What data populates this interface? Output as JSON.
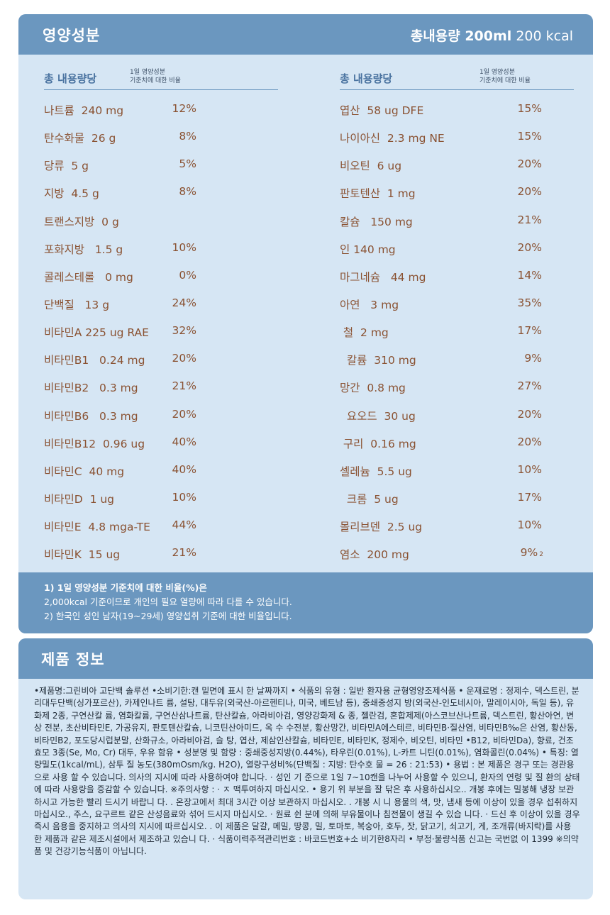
{
  "nutrition": {
    "title": "영양성분",
    "total_label": "총내용량",
    "total_amount": "200ml",
    "total_kcal": "200 kcal",
    "col_header": "총 내용량당",
    "col_subheader_line1": "1일 영양성분",
    "col_subheader_line2": "기준치에 대한 비율",
    "left": [
      {
        "name": "나트륨  240 mg",
        "pct": "12%"
      },
      {
        "name": "탄수화물  26 g",
        "pct": "8%"
      },
      {
        "name": "당류  5 g",
        "pct": "5%"
      },
      {
        "name": "지방  4.5 g",
        "pct": "8%"
      },
      {
        "name": "트랜스지방  0 g",
        "pct": ""
      },
      {
        "name": "포화지방   1.5 g",
        "pct": "10%"
      },
      {
        "name": "콜레스테롤   0 mg",
        "pct": "0%"
      },
      {
        "name": "단백질   13 g",
        "pct": "24%"
      },
      {
        "name": "비타민A 225 ug RAE",
        "pct": "32%"
      },
      {
        "name": "비타민B1   0.24 mg",
        "pct": "20%"
      },
      {
        "name": "비타민B2   0.3 mg",
        "pct": "21%"
      },
      {
        "name": "비타민B6   0.3 mg",
        "pct": "20%"
      },
      {
        "name": "비타민B12  0.96 ug",
        "pct": "40%"
      },
      {
        "name": "비타민C  40 mg",
        "pct": "40%"
      },
      {
        "name": "비타민D  1 ug",
        "pct": "10%"
      },
      {
        "name": "비타민E  4.8 mga-TE",
        "pct": "44%"
      },
      {
        "name": "비타민K  15 ug",
        "pct": "21%"
      }
    ],
    "right": [
      {
        "name": "엽산  58 ug DFE",
        "pct": "15%"
      },
      {
        "name": "나이아신  2.3 mg NE",
        "pct": "15%"
      },
      {
        "name": "비오틴  6 ug",
        "pct": "20%"
      },
      {
        "name": "판토텐산  1 mg",
        "pct": "20%"
      },
      {
        "name": "칼슘   150 mg",
        "pct": "21%"
      },
      {
        "name": "인 140 mg",
        "pct": "20%"
      },
      {
        "name": "마그네슘   44 mg",
        "pct": "14%"
      },
      {
        "name": "아연   3 mg",
        "pct": "35%"
      },
      {
        "name": " 철  2 mg",
        "pct": "17%"
      },
      {
        "name": "  칼륨  310 mg",
        "pct": "9%"
      },
      {
        "name": "망간  0.8 mg",
        "pct": "27%"
      },
      {
        "name": "  요오드  30 ug",
        "pct": "20%"
      },
      {
        "name": " 구리  0.16 mg",
        "pct": "20%"
      },
      {
        "name": "셀레늄  5.5 ug",
        "pct": "10%"
      },
      {
        "name": "  크롬  5 ug",
        "pct": "17%"
      },
      {
        "name": "몰리브덴  2.5 ug",
        "pct": "10%"
      },
      {
        "name": "염소  200 mg",
        "pct": "9%",
        "note": "2"
      }
    ],
    "footnote1_bold": "1) 1일 영양성분 기준치에 대한 비율(%)은",
    "footnote1_rest": "2,000kcal 기준이므로 개인의 필요 열량에 따라 다를 수 있습니다.",
    "footnote2": "2) 한국인 성인 남자(19~29세) 영양섭취 기준에 대한 비율입니다."
  },
  "product": {
    "title": "제품 정보",
    "text": "•제품명:그린비아 고단백 솔루션 •소비기한:캔 밑면에 표시 한 날짜까지 • 식품의 유형 : 일반 환자용 균형영양조제식품 • 운재료명 : 정제수, 덱스트린, 분리대두단백(싱가포르산), 카제인나트 륨, 설탕, 대두유(외국산-아르헨티나, 미국, 베트남 등), 중쇄중성지 방(외국산-인도네시아, 말레이시아, 독일 등), 유화제 2종, 구연산칼 륨, 염화칼륨, 구연산삼나트륨, 탄산칼슘, 아라비아검, 영양강화제 & 종, 젤란검, 혼합제제(아스코브산나트륨, 덱스트린, 황산아연, 변상 전분, 초산비타민E, 가공유지, 판토텐산칼슘, 니코틴산아미드, 옥 수 수전분, 황산망간, 비타민A에스테르, 비타민B·질산염, 비타민B‰은 산염, 황산동, 비타민B2, 포도당시럽분말, 산화규소, 아라비아검, 슬 탕, 엽산, 제삼인산칼슘, 비타민E, 비타민K, 정제수, 비오틴, 비타민 •B12, 비타민Da), 향료, 건조효모 3종(Se, Mo, Cr) 대두, 우유 함유 • 성분명 및 함량 : 중쇄중성지방(0.44%), 타우린(0.01%), L-카트 니틴(0.01%), 염화콜린(0.04%) • 특징: 열량밀도(1kcal/mL), 삼투 질 농도(380mOsm/kg. H2O), 열량구성비%(단백질 : 지방: 탄수호 물 = 26 : 21:53) • 용법 : 본 제품은 경구 또는 경관용으로 사용 할 수 있습니다. 의사의 지시에 따라 사용하여야 합니다. · 성인 기 준으로 1일 7~10캔을 나누어 사용할 수 있으니, 환자의 연령 및 질 환의 상태에 따라 사용량을 증감할 수 있습니다. ※주의사항 : · ㅈ 맥투여하지 마십시오. • 용기 위 부분을 잘 닦은 후 사용하십시오.. 개봉 후에는 밀봉해 냉장 보관 하시고 가능한 빨리 드시기 바랍니 다. . 온장고에서 최대 3시간 이상 보관하지 마십시오. . 개봉 시 니 용물의 색, 맛, 냄새 등에 이상이 있을 경우 섭취하지 마십시오., 주스, 요구르트 같은 산성음료와 섞어 드시지 마십시오. · 원료 쉰 분에 의해 부유물이나 침전물이 생길 수 있습 니다. · 드신 후 이상이 있을 경우 즉시 음용을 중지하고 의사의 지시에 따르십시오. . 이 제품은 달걀, 메밀, 땅콩, 밀, 토마토, 복숭아, 호두, 잣, 닭고기, 쇠고기, 게, 조개류(바지락)를 사용 한 제품과 같은 제조시설에서 제조하고 있습니 다. · 식품이력추적관리번호 : 바코드번호+소 비기한8자리 • 부정·불량식품 신고는 국번없 이 1399 ※의약품 및 건강기능식품이 아닙니다."
  },
  "colors": {
    "panel_bg": "#d6e6f4",
    "header_bg": "#6b97bf",
    "value_text": "#8a5232",
    "header_text": "#4a73a0"
  }
}
